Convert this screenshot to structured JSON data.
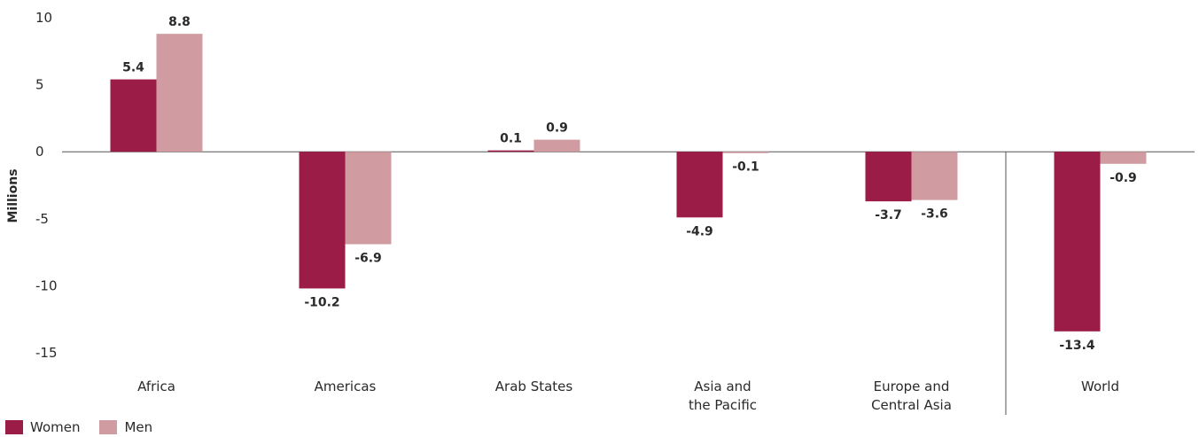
{
  "chart_data": {
    "type": "bar",
    "ylabel": "Millions",
    "ylim": [
      -15,
      10
    ],
    "yticks": [
      "10",
      "5",
      "0",
      "-5",
      "-10",
      "-15"
    ],
    "ytick_values": [
      10,
      5,
      0,
      -5,
      -10,
      -15
    ],
    "categories": [
      [
        "Africa"
      ],
      [
        "Americas"
      ],
      [
        "Arab States"
      ],
      [
        "Asia and",
        "the Pacific"
      ],
      [
        "Europe and",
        "Central Asia"
      ],
      [
        "World"
      ]
    ],
    "series": [
      {
        "name": "Women",
        "color": "#9b1c47",
        "values": [
          5.4,
          -10.2,
          0.1,
          -4.9,
          -3.7,
          -13.4
        ],
        "labels": [
          "5.4",
          "-10.2",
          "0.1",
          "-4.9",
          "-3.7",
          "-13.4"
        ]
      },
      {
        "name": "Men",
        "color": "#d09ca2",
        "values": [
          8.8,
          -6.9,
          0.9,
          -0.1,
          -3.6,
          -0.9
        ],
        "labels": [
          "8.8",
          "-6.9",
          "0.9",
          "-0.1",
          "-3.6",
          "-0.9"
        ]
      }
    ],
    "separator_before_category": 5,
    "grid": false,
    "legend_position": "bottom-left"
  }
}
